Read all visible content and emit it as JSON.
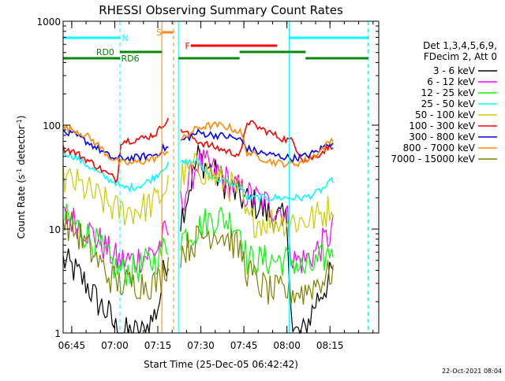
{
  "chart_data": {
    "type": "line",
    "title": "RHESSI Observing Summary Count Rates",
    "xlabel": "Start Time (25-Dec-05 06:42:42)",
    "ylabel_parts": [
      "Count Rate (s",
      "-1",
      " detector",
      "-1",
      ")"
    ],
    "y_scale": "log",
    "ylim": [
      1,
      1000
    ],
    "y_ticks": [
      {
        "value": 1,
        "label": "1"
      },
      {
        "value": 10,
        "label": "10"
      },
      {
        "value": 100,
        "label": "100"
      },
      {
        "value": 1000,
        "label": "1000"
      }
    ],
    "x_range_min": [
      402,
      512
    ],
    "x_ticks": [
      {
        "min": 405,
        "label": "06:45"
      },
      {
        "min": 420,
        "label": "07:00"
      },
      {
        "min": 435,
        "label": "07:15"
      },
      {
        "min": 450,
        "label": "07:30"
      },
      {
        "min": 465,
        "label": "07:45"
      },
      {
        "min": 480,
        "label": "08:00"
      },
      {
        "min": 495,
        "label": "08:15"
      }
    ],
    "legend_header": [
      "Det 1,3,4,5,6,9,",
      "FDecim 2, Att 0"
    ],
    "legend_placement": "right",
    "series": [
      {
        "name": "3 - 6 keV",
        "color": "#000000",
        "points": [
          [
            402,
            5
          ],
          [
            406,
            4
          ],
          [
            410,
            3
          ],
          [
            414,
            2
          ],
          [
            418,
            1.5
          ],
          [
            421,
            1
          ],
          [
            425,
            1
          ],
          [
            430,
            1
          ],
          [
            434,
            1.5
          ],
          [
            435.5,
            2
          ],
          [
            436.5,
            3
          ],
          [
            437,
            4
          ],
          [
            438,
            5
          ],
          [
            439,
            5
          ],
          [
            449,
            50
          ],
          [
            452,
            40
          ],
          [
            456,
            32
          ],
          [
            460,
            25
          ],
          [
            464,
            20
          ],
          [
            468,
            18
          ],
          [
            472,
            15
          ],
          [
            476,
            13
          ],
          [
            480,
            12
          ],
          [
            482,
            1
          ],
          [
            486,
            1
          ],
          [
            490,
            2
          ],
          [
            494,
            3
          ],
          [
            496,
            4
          ]
        ]
      },
      {
        "name": "6 - 12 keV",
        "color": "#ff00ff",
        "points": [
          [
            402,
            13
          ],
          [
            406,
            12
          ],
          [
            410,
            10
          ],
          [
            414,
            8
          ],
          [
            418,
            6
          ],
          [
            421,
            5
          ],
          [
            422,
            5
          ],
          [
            426,
            5
          ],
          [
            430,
            5.5
          ],
          [
            434,
            6
          ],
          [
            435.5,
            7
          ],
          [
            436.5,
            8
          ],
          [
            437,
            8.5
          ],
          [
            438,
            9
          ],
          [
            439,
            9.5
          ],
          [
            449,
            45
          ],
          [
            452,
            40
          ],
          [
            456,
            34
          ],
          [
            460,
            28
          ],
          [
            464,
            23
          ],
          [
            468,
            20
          ],
          [
            472,
            18
          ],
          [
            476,
            16
          ],
          [
            480,
            14
          ],
          [
            482,
            5
          ],
          [
            486,
            5
          ],
          [
            490,
            6
          ],
          [
            494,
            8
          ],
          [
            496,
            10
          ]
        ]
      },
      {
        "name": "12 - 25 keV",
        "color": "#00ff00",
        "points": [
          [
            402,
            13
          ],
          [
            406,
            11
          ],
          [
            410,
            9
          ],
          [
            414,
            7
          ],
          [
            418,
            5
          ],
          [
            421,
            4
          ],
          [
            422,
            4
          ],
          [
            426,
            4
          ],
          [
            430,
            4.5
          ],
          [
            434,
            5
          ],
          [
            435.5,
            5.5
          ],
          [
            436.5,
            6
          ],
          [
            437,
            6.5
          ],
          [
            438,
            7
          ],
          [
            439,
            7.5
          ],
          [
            449,
            10
          ],
          [
            452,
            12
          ],
          [
            456,
            13
          ],
          [
            460,
            12
          ],
          [
            464,
            10
          ],
          [
            466,
            5
          ],
          [
            470,
            5
          ],
          [
            474,
            5
          ],
          [
            478,
            5
          ],
          [
            482,
            5
          ],
          [
            486,
            4
          ],
          [
            490,
            4.5
          ],
          [
            494,
            5.5
          ],
          [
            496,
            7
          ]
        ]
      },
      {
        "name": "25 - 50 keV",
        "color": "#00ffff",
        "points": [
          [
            402,
            55
          ],
          [
            406,
            50
          ],
          [
            410,
            42
          ],
          [
            414,
            35
          ],
          [
            418,
            30
          ],
          [
            421,
            28
          ],
          [
            422,
            25
          ],
          [
            426,
            25
          ],
          [
            430,
            27
          ],
          [
            434,
            32
          ],
          [
            435.5,
            35
          ],
          [
            436.5,
            38
          ],
          [
            437,
            40
          ],
          [
            438,
            40
          ],
          [
            439,
            42
          ],
          [
            449,
            45
          ],
          [
            452,
            35
          ],
          [
            456,
            30
          ],
          [
            460,
            28
          ],
          [
            464,
            25
          ],
          [
            466,
            20
          ],
          [
            470,
            20
          ],
          [
            474,
            20
          ],
          [
            478,
            20
          ],
          [
            482,
            20
          ],
          [
            486,
            20
          ],
          [
            490,
            22
          ],
          [
            494,
            26
          ],
          [
            496,
            30
          ]
        ]
      },
      {
        "name": "50 - 100 keV",
        "color": "#cccc00",
        "points": [
          [
            402,
            30
          ],
          [
            406,
            28
          ],
          [
            410,
            24
          ],
          [
            414,
            20
          ],
          [
            418,
            17
          ],
          [
            421,
            15
          ],
          [
            422,
            15
          ],
          [
            426,
            15
          ],
          [
            430,
            16
          ],
          [
            434,
            18
          ],
          [
            435.5,
            20
          ],
          [
            436.5,
            22
          ],
          [
            437,
            24
          ],
          [
            438,
            25
          ],
          [
            439,
            26
          ],
          [
            449,
            40
          ],
          [
            452,
            35
          ],
          [
            456,
            30
          ],
          [
            460,
            26
          ],
          [
            464,
            22
          ],
          [
            466,
            12
          ],
          [
            470,
            12
          ],
          [
            474,
            12
          ],
          [
            478,
            12
          ],
          [
            482,
            12
          ],
          [
            486,
            12
          ],
          [
            490,
            13
          ],
          [
            494,
            15
          ],
          [
            496,
            18
          ]
        ]
      },
      {
        "name": "100 - 300 keV",
        "color": "#ff0000",
        "points": [
          [
            402,
            60
          ],
          [
            406,
            55
          ],
          [
            410,
            47
          ],
          [
            414,
            40
          ],
          [
            418,
            33
          ],
          [
            421,
            30
          ],
          [
            422,
            70
          ],
          [
            426,
            72
          ],
          [
            430,
            75
          ],
          [
            434,
            82
          ],
          [
            435.5,
            90
          ],
          [
            436.5,
            100
          ],
          [
            437,
            105
          ],
          [
            438,
            110
          ],
          [
            439,
            110
          ],
          [
            449,
            70
          ],
          [
            452,
            65
          ],
          [
            456,
            60
          ],
          [
            460,
            55
          ],
          [
            464,
            52
          ],
          [
            466,
            110
          ],
          [
            470,
            95
          ],
          [
            474,
            85
          ],
          [
            478,
            75
          ],
          [
            482,
            70
          ],
          [
            486,
            45
          ],
          [
            490,
            50
          ],
          [
            494,
            60
          ],
          [
            496,
            65
          ]
        ]
      },
      {
        "name": "300 - 800 keV",
        "color": "#0000ff",
        "points": [
          [
            402,
            85
          ],
          [
            406,
            80
          ],
          [
            410,
            70
          ],
          [
            414,
            60
          ],
          [
            418,
            50
          ],
          [
            421,
            47
          ],
          [
            422,
            48
          ],
          [
            426,
            48
          ],
          [
            430,
            50
          ],
          [
            434,
            52
          ],
          [
            435.5,
            55
          ],
          [
            436.5,
            58
          ],
          [
            437,
            60
          ],
          [
            438,
            60
          ],
          [
            439,
            62
          ],
          [
            449,
            85
          ],
          [
            452,
            82
          ],
          [
            456,
            80
          ],
          [
            460,
            77
          ],
          [
            464,
            72
          ],
          [
            466,
            60
          ],
          [
            470,
            55
          ],
          [
            474,
            52
          ],
          [
            478,
            50
          ],
          [
            482,
            48
          ],
          [
            486,
            50
          ],
          [
            490,
            55
          ],
          [
            494,
            65
          ],
          [
            496,
            70
          ]
        ]
      },
      {
        "name": "800 - 7000 keV",
        "color": "#ff8800",
        "points": [
          [
            402,
            95
          ],
          [
            406,
            90
          ],
          [
            410,
            80
          ],
          [
            414,
            65
          ],
          [
            418,
            50
          ],
          [
            421,
            45
          ],
          [
            422,
            43
          ],
          [
            426,
            43
          ],
          [
            430,
            45
          ],
          [
            434,
            48
          ],
          [
            435.5,
            50
          ],
          [
            436.5,
            53
          ],
          [
            437,
            55
          ],
          [
            438,
            56
          ],
          [
            439,
            58
          ],
          [
            449,
            95
          ],
          [
            452,
            98
          ],
          [
            456,
            100
          ],
          [
            460,
            95
          ],
          [
            464,
            85
          ],
          [
            466,
            55
          ],
          [
            470,
            50
          ],
          [
            474,
            45
          ],
          [
            478,
            43
          ],
          [
            482,
            42
          ],
          [
            486,
            45
          ],
          [
            490,
            52
          ],
          [
            494,
            65
          ],
          [
            496,
            75
          ]
        ]
      },
      {
        "name": "7000 - 15000 keV",
        "color": "#808000",
        "points": [
          [
            402,
            12
          ],
          [
            406,
            10
          ],
          [
            410,
            7
          ],
          [
            414,
            5
          ],
          [
            418,
            3.5
          ],
          [
            421,
            3
          ],
          [
            422,
            3
          ],
          [
            426,
            3
          ],
          [
            430,
            3
          ],
          [
            434,
            3
          ],
          [
            435.5,
            3.2
          ],
          [
            436.5,
            3.5
          ],
          [
            437,
            4
          ],
          [
            438,
            4.5
          ],
          [
            439,
            5
          ],
          [
            449,
            8
          ],
          [
            452,
            9
          ],
          [
            456,
            9.5
          ],
          [
            460,
            8
          ],
          [
            464,
            6
          ],
          [
            466,
            4
          ],
          [
            470,
            3
          ],
          [
            474,
            2.5
          ],
          [
            478,
            2.5
          ],
          [
            482,
            2.5
          ],
          [
            486,
            2.5
          ],
          [
            490,
            3
          ],
          [
            494,
            3.5
          ],
          [
            496,
            4
          ]
        ]
      }
    ],
    "vertical_lines": [
      {
        "min": 402,
        "color": "#00ffff",
        "style": "solid"
      },
      {
        "min": 421.8,
        "color": "#00ffff",
        "style": "dashed"
      },
      {
        "min": 436.4,
        "color": "#ff8800",
        "style": "solid"
      },
      {
        "min": 440.5,
        "color": "#ff8800",
        "style": "dashed"
      },
      {
        "min": 442.2,
        "color": "#00ffff",
        "style": "solid"
      },
      {
        "min": 480.8,
        "color": "#00ffff",
        "style": "solid"
      },
      {
        "min": 508.3,
        "color": "#00ffff",
        "style": "dashed"
      }
    ],
    "flag_bars": [
      {
        "label": "N",
        "color": "#00ffff",
        "row": 0,
        "segments": [
          [
            402,
            421.8
          ],
          [
            480.8,
            508.3
          ]
        ],
        "label_at": 422.5
      },
      {
        "label": "S",
        "color": "#ff8800",
        "row": -1,
        "segments": [
          [
            436.4,
            440.5
          ]
        ],
        "label_at": 434.5
      },
      {
        "label": "F",
        "color": "#ff0000",
        "row": 1,
        "segments": [
          [
            446.5,
            476.5
          ]
        ],
        "label_at": 444.5
      },
      {
        "label": "RD0",
        "color": "#008800",
        "row": 2,
        "segments": [
          [
            421.8,
            436.4
          ],
          [
            463.5,
            486.5
          ]
        ],
        "label_at": 413.5
      },
      {
        "label": "RD6",
        "color": "#008800",
        "row": 3,
        "segments": [
          [
            402,
            421.8
          ],
          [
            442.2,
            463.5
          ],
          [
            486.5,
            508.3
          ]
        ],
        "label_at": 422.2
      }
    ]
  },
  "footer": {
    "timestamp": "22-Oct-2021 08:04"
  }
}
